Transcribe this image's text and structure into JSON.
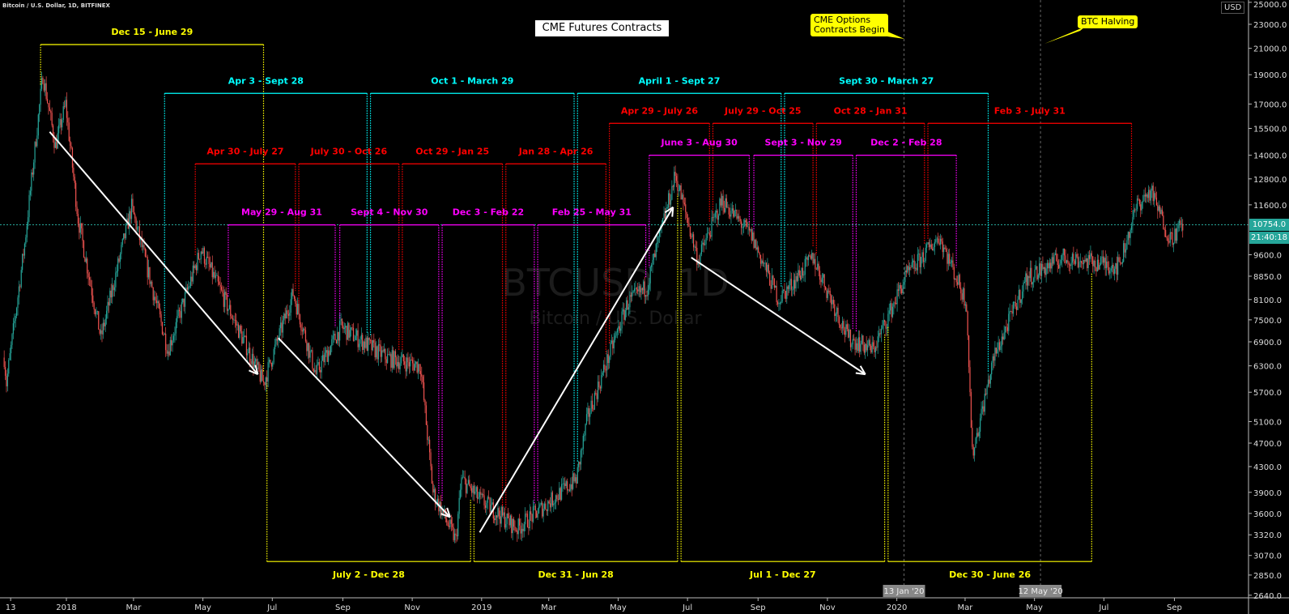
{
  "header": {
    "symbol": "Bitcoin / U.S. Dollar, 1D, BITFINEX",
    "title": "CME Futures Contracts",
    "currency": "USD",
    "callouts": [
      {
        "text1": "CME Options",
        "text2": "Contracts Begin",
        "date": "2020-01-13"
      },
      {
        "text1": "BTC Halving",
        "text2": "",
        "date": "2020-05-12"
      }
    ],
    "watermark": "BTCUSD, 1D",
    "watermark_sub": "Bitcoin / U.S. Dollar"
  },
  "last_price": {
    "value": "10754.0",
    "countdown": "21:40:18",
    "price": 10754
  },
  "colors": {
    "up": "#26a69a",
    "down": "#ef5350",
    "yellow": "#ffff00",
    "cyan": "#00ffff",
    "red": "#ff0000",
    "magenta": "#ff00ff",
    "arrow": "#ffffff",
    "price_line": "#26a69a"
  },
  "chart_data": {
    "type": "candlestick",
    "y_scale": "log",
    "ylim": [
      2640,
      25000
    ],
    "y_ticks": [
      "25000.0",
      "23000.0",
      "21000.0",
      "19000.0",
      "17000.0",
      "15500.0",
      "14000.0",
      "12800.0",
      "11600.0",
      "9600.0",
      "8850.0",
      "8100.0",
      "7500.0",
      "6900.0",
      "6300.0",
      "5700.0",
      "5100.0",
      "4700.0",
      "4300.0",
      "3900.0",
      "3600.0",
      "3320.0",
      "3070.0",
      "2850.0",
      "2640.0"
    ],
    "x_ticks": [
      {
        "label": "13",
        "date": "2017-11-13"
      },
      {
        "label": "2018",
        "date": "2018-01-01"
      },
      {
        "label": "Mar",
        "date": "2018-03-01"
      },
      {
        "label": "May",
        "date": "2018-05-01"
      },
      {
        "label": "Jul",
        "date": "2018-07-01"
      },
      {
        "label": "Sep",
        "date": "2018-09-01"
      },
      {
        "label": "Nov",
        "date": "2018-11-01"
      },
      {
        "label": "2019",
        "date": "2019-01-01"
      },
      {
        "label": "Mar",
        "date": "2019-03-01"
      },
      {
        "label": "May",
        "date": "2019-05-01"
      },
      {
        "label": "Jul",
        "date": "2019-07-01"
      },
      {
        "label": "Sep",
        "date": "2019-09-01"
      },
      {
        "label": "Nov",
        "date": "2019-11-01"
      },
      {
        "label": "2020",
        "date": "2020-01-01"
      },
      {
        "label": "Mar",
        "date": "2020-03-01"
      },
      {
        "label": "May",
        "date": "2020-05-01"
      },
      {
        "label": "Jul",
        "date": "2020-07-01"
      },
      {
        "label": "Sep",
        "date": "2020-09-01"
      }
    ],
    "x_highlights": [
      {
        "label": "13 Jan '20",
        "date": "2020-01-13"
      },
      {
        "label": "12 May '20",
        "date": "2020-05-12"
      }
    ],
    "price_path": [
      [
        "2017-11-13",
        6500
      ],
      [
        "2017-11-15",
        5900
      ],
      [
        "2017-12-01",
        10000
      ],
      [
        "2017-12-17",
        19000
      ],
      [
        "2017-12-28",
        14500
      ],
      [
        "2018-01-06",
        17000
      ],
      [
        "2018-01-17",
        11000
      ],
      [
        "2018-02-06",
        7000
      ],
      [
        "2018-03-05",
        11500
      ],
      [
        "2018-04-06",
        6700
      ],
      [
        "2018-05-05",
        9800
      ],
      [
        "2018-06-29",
        5900
      ],
      [
        "2018-07-25",
        8300
      ],
      [
        "2018-08-14",
        6100
      ],
      [
        "2018-09-05",
        7300
      ],
      [
        "2018-10-15",
        6500
      ],
      [
        "2018-11-14",
        6300
      ],
      [
        "2018-11-25",
        3900
      ],
      [
        "2018-12-15",
        3250
      ],
      [
        "2018-12-20",
        4100
      ],
      [
        "2019-01-05",
        3800
      ],
      [
        "2019-02-07",
        3400
      ],
      [
        "2019-03-31",
        4100
      ],
      [
        "2019-04-10",
        5200
      ],
      [
        "2019-05-15",
        8000
      ],
      [
        "2019-06-01",
        8500
      ],
      [
        "2019-06-26",
        13000
      ],
      [
        "2019-07-16",
        9400
      ],
      [
        "2019-08-06",
        11800
      ],
      [
        "2019-09-01",
        10300
      ],
      [
        "2019-09-25",
        8100
      ],
      [
        "2019-10-25",
        9500
      ],
      [
        "2019-11-25",
        7000
      ],
      [
        "2019-12-17",
        6700
      ],
      [
        "2020-01-14",
        8800
      ],
      [
        "2020-02-13",
        10300
      ],
      [
        "2020-03-08",
        8000
      ],
      [
        "2020-03-13",
        4500
      ],
      [
        "2020-04-01",
        6500
      ],
      [
        "2020-04-30",
        8800
      ],
      [
        "2020-06-01",
        9500
      ],
      [
        "2020-07-20",
        9200
      ],
      [
        "2020-08-05",
        11600
      ],
      [
        "2020-08-17",
        12200
      ],
      [
        "2020-09-03",
        10200
      ],
      [
        "2020-09-14",
        10754
      ]
    ],
    "brackets": [
      {
        "label": "Dec 15 - June 29",
        "start": "2017-12-15",
        "end": "2018-06-29",
        "level": 21300,
        "color": "yellow",
        "side": "top"
      },
      {
        "label": "July 2 - Dec 28",
        "start": "2018-07-02",
        "end": "2018-12-28",
        "level": 3000,
        "color": "yellow",
        "side": "bottom"
      },
      {
        "label": "Dec 31 - Jun 28",
        "start": "2018-12-31",
        "end": "2019-06-28",
        "level": 3000,
        "color": "yellow",
        "side": "bottom"
      },
      {
        "label": "Jul 1 - Dec 27",
        "start": "2019-07-01",
        "end": "2019-12-27",
        "level": 3000,
        "color": "yellow",
        "side": "bottom"
      },
      {
        "label": "Dec 30 - June 26",
        "start": "2019-12-30",
        "end": "2020-06-26",
        "level": 3000,
        "color": "yellow",
        "side": "bottom"
      },
      {
        "label": "Apr 3 - Sept 28",
        "start": "2018-04-03",
        "end": "2018-09-28",
        "level": 17700,
        "color": "cyan",
        "side": "top"
      },
      {
        "label": "Oct 1 - March 29",
        "start": "2018-10-01",
        "end": "2019-03-29",
        "level": 17700,
        "color": "cyan",
        "side": "top"
      },
      {
        "label": "April 1 - Sept 27",
        "start": "2019-04-01",
        "end": "2019-09-27",
        "level": 17700,
        "color": "cyan",
        "side": "top"
      },
      {
        "label": "Sept 30 - March 27",
        "start": "2019-09-30",
        "end": "2020-03-27",
        "level": 17700,
        "color": "cyan",
        "side": "top"
      },
      {
        "label": "Apr 30 - July 27",
        "start": "2018-04-30",
        "end": "2018-07-27",
        "level": 13550,
        "color": "red",
        "side": "top"
      },
      {
        "label": "July 30 - Oct 26",
        "start": "2018-07-30",
        "end": "2018-10-26",
        "level": 13550,
        "color": "red",
        "side": "top"
      },
      {
        "label": "Oct 29 - Jan 25",
        "start": "2018-10-29",
        "end": "2019-01-25",
        "level": 13550,
        "color": "red",
        "side": "top"
      },
      {
        "label": "Jan 28 - Apr 26",
        "start": "2019-01-28",
        "end": "2019-04-26",
        "level": 13550,
        "color": "red",
        "side": "top"
      },
      {
        "label": "Apr 29 - July 26",
        "start": "2019-04-29",
        "end": "2019-07-26",
        "level": 15800,
        "color": "red",
        "side": "top"
      },
      {
        "label": "July 29 - Oct 25",
        "start": "2019-07-29",
        "end": "2019-10-25",
        "level": 15800,
        "color": "red",
        "side": "top"
      },
      {
        "label": "Oct 28 - Jan 31",
        "start": "2019-10-28",
        "end": "2020-01-31",
        "level": 15800,
        "color": "red",
        "side": "top"
      },
      {
        "label": "Feb 3 - July 31",
        "start": "2020-02-03",
        "end": "2020-07-31",
        "level": 15800,
        "color": "red",
        "side": "top"
      },
      {
        "label": "May 29 - Aug 31",
        "start": "2018-05-29",
        "end": "2018-08-31",
        "level": 10750,
        "color": "magenta",
        "side": "top"
      },
      {
        "label": "Sept 4 - Nov 30",
        "start": "2018-09-04",
        "end": "2018-11-30",
        "level": 10750,
        "color": "magenta",
        "side": "top"
      },
      {
        "label": "Dec 3 - Feb 22",
        "start": "2018-12-03",
        "end": "2019-02-22",
        "level": 10750,
        "color": "magenta",
        "side": "top"
      },
      {
        "label": "Feb 25 - May 31",
        "start": "2019-02-25",
        "end": "2019-05-31",
        "level": 10750,
        "color": "magenta",
        "side": "top"
      },
      {
        "label": "June 3 - Aug 30",
        "start": "2019-06-03",
        "end": "2019-08-30",
        "level": 14000,
        "color": "magenta",
        "side": "top"
      },
      {
        "label": "Sept 3 - Nov 29",
        "start": "2019-09-03",
        "end": "2019-11-29",
        "level": 14000,
        "color": "magenta",
        "side": "top"
      },
      {
        "label": "Dec 2 - Feb 28",
        "start": "2019-12-02",
        "end": "2020-02-28",
        "level": 14000,
        "color": "magenta",
        "side": "top"
      }
    ],
    "arrows": [
      {
        "from": [
          "2017-12-23",
          15300
        ],
        "to": [
          "2018-06-24",
          6100
        ]
      },
      {
        "from": [
          "2018-07-12",
          7000
        ],
        "to": [
          "2018-12-10",
          3550
        ]
      },
      {
        "from": [
          "2019-01-05",
          3350
        ],
        "to": [
          "2019-06-24",
          11500
        ]
      },
      {
        "from": [
          "2019-07-10",
          9500
        ],
        "to": [
          "2019-12-10",
          6100
        ]
      }
    ]
  }
}
